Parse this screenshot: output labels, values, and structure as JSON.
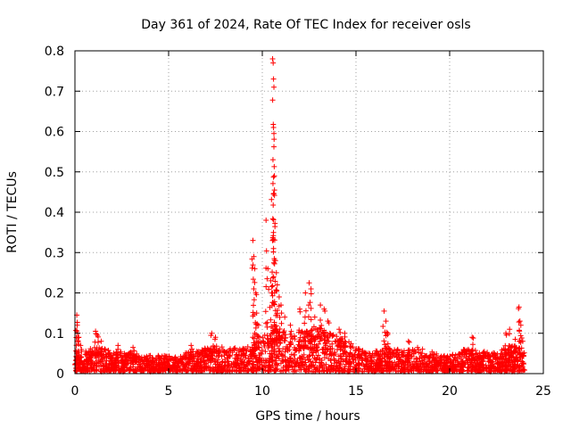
{
  "chart_data": {
    "type": "scatter",
    "title": "Day 361 of 2024, Rate Of TEC Index for receiver osls",
    "xlabel": "GPS time / hours",
    "ylabel": "ROTI / TECUs",
    "xlim": [
      0,
      25
    ],
    "ylim": [
      0,
      0.8
    ],
    "xticks": [
      "0",
      "5",
      "10",
      "15",
      "20",
      "25"
    ],
    "yticks": [
      "0",
      "0.1",
      "0.2",
      "0.3",
      "0.4",
      "0.5",
      "0.6",
      "0.7",
      "0.8"
    ],
    "grid": true,
    "marker": "+",
    "series": [
      {
        "name": "ROTI",
        "color": "#ff0000",
        "baseline": {
          "x": [
            0.0,
            0.5,
            1.0,
            1.5,
            2.0,
            2.5,
            3.0,
            3.5,
            4.0,
            4.5,
            5.0,
            5.5,
            6.0,
            6.5,
            7.0,
            7.5,
            8.0,
            8.5,
            9.0,
            9.5,
            10.0,
            10.5,
            11.0,
            11.5,
            12.0,
            12.5,
            13.0,
            13.5,
            14.0,
            14.5,
            15.0,
            15.5,
            16.0,
            16.5,
            17.0,
            17.5,
            18.0,
            18.5,
            19.0,
            19.5,
            20.0,
            20.5,
            21.0,
            21.5,
            22.0,
            22.5,
            23.0,
            23.5,
            24.0
          ],
          "y": [
            0.05,
            0.05,
            0.06,
            0.06,
            0.05,
            0.05,
            0.05,
            0.04,
            0.04,
            0.04,
            0.04,
            0.035,
            0.05,
            0.05,
            0.06,
            0.07,
            0.06,
            0.06,
            0.06,
            0.07,
            0.09,
            0.1,
            0.11,
            0.09,
            0.1,
            0.1,
            0.11,
            0.1,
            0.09,
            0.08,
            0.06,
            0.05,
            0.05,
            0.06,
            0.06,
            0.05,
            0.06,
            0.06,
            0.05,
            0.04,
            0.04,
            0.05,
            0.06,
            0.05,
            0.05,
            0.05,
            0.06,
            0.07,
            0.05
          ]
        },
        "peaks": [
          {
            "x": 0.1,
            "y": 0.145
          },
          {
            "x": 0.12,
            "y": 0.12
          },
          {
            "x": 0.15,
            "y": 0.1
          },
          {
            "x": 0.2,
            "y": 0.09
          },
          {
            "x": 0.3,
            "y": 0.07
          },
          {
            "x": 1.1,
            "y": 0.105
          },
          {
            "x": 1.2,
            "y": 0.095
          },
          {
            "x": 1.4,
            "y": 0.08
          },
          {
            "x": 2.3,
            "y": 0.07
          },
          {
            "x": 3.1,
            "y": 0.065
          },
          {
            "x": 6.2,
            "y": 0.07
          },
          {
            "x": 7.3,
            "y": 0.1
          },
          {
            "x": 7.5,
            "y": 0.09
          },
          {
            "x": 9.5,
            "y": 0.33
          },
          {
            "x": 9.55,
            "y": 0.29
          },
          {
            "x": 9.6,
            "y": 0.26
          },
          {
            "x": 9.65,
            "y": 0.2
          },
          {
            "x": 9.7,
            "y": 0.15
          },
          {
            "x": 9.8,
            "y": 0.12
          },
          {
            "x": 10.2,
            "y": 0.38
          },
          {
            "x": 10.3,
            "y": 0.26
          },
          {
            "x": 10.45,
            "y": 0.23
          },
          {
            "x": 10.5,
            "y": 0.2
          },
          {
            "x": 10.55,
            "y": 0.78
          },
          {
            "x": 10.58,
            "y": 0.77
          },
          {
            "x": 10.6,
            "y": 0.73
          },
          {
            "x": 10.62,
            "y": 0.71
          },
          {
            "x": 10.6,
            "y": 0.61
          },
          {
            "x": 10.62,
            "y": 0.595
          },
          {
            "x": 10.65,
            "y": 0.455
          },
          {
            "x": 10.6,
            "y": 0.445
          },
          {
            "x": 10.6,
            "y": 0.31
          },
          {
            "x": 10.7,
            "y": 0.28
          },
          {
            "x": 10.75,
            "y": 0.25
          },
          {
            "x": 10.8,
            "y": 0.22
          },
          {
            "x": 10.9,
            "y": 0.19
          },
          {
            "x": 11.0,
            "y": 0.17
          },
          {
            "x": 11.2,
            "y": 0.14
          },
          {
            "x": 11.5,
            "y": 0.12
          },
          {
            "x": 12.0,
            "y": 0.16
          },
          {
            "x": 12.3,
            "y": 0.2
          },
          {
            "x": 12.5,
            "y": 0.225
          },
          {
            "x": 12.6,
            "y": 0.21
          },
          {
            "x": 12.8,
            "y": 0.14
          },
          {
            "x": 13.1,
            "y": 0.17
          },
          {
            "x": 13.3,
            "y": 0.16
          },
          {
            "x": 13.5,
            "y": 0.13
          },
          {
            "x": 14.1,
            "y": 0.11
          },
          {
            "x": 14.4,
            "y": 0.1
          },
          {
            "x": 16.5,
            "y": 0.155
          },
          {
            "x": 16.6,
            "y": 0.13
          },
          {
            "x": 16.7,
            "y": 0.1
          },
          {
            "x": 17.8,
            "y": 0.08
          },
          {
            "x": 21.2,
            "y": 0.09
          },
          {
            "x": 23.0,
            "y": 0.1
          },
          {
            "x": 23.2,
            "y": 0.11
          },
          {
            "x": 23.5,
            "y": 0.085
          },
          {
            "x": 23.7,
            "y": 0.165
          },
          {
            "x": 23.75,
            "y": 0.13
          },
          {
            "x": 23.8,
            "y": 0.12
          },
          {
            "x": 23.9,
            "y": 0.08
          }
        ]
      }
    ]
  }
}
